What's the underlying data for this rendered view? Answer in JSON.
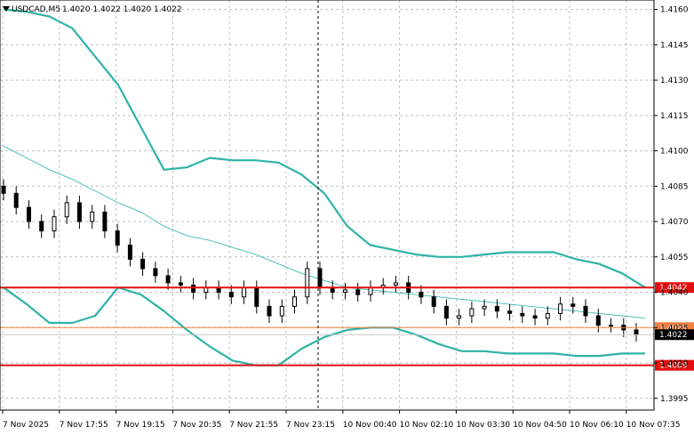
{
  "window": {
    "symbol": "USDCAD,M5",
    "ohlc": "1.4020 1.4022 1.4020 1.4022"
  },
  "chart_data": {
    "type": "candlestick",
    "title": "USDCAD,M5",
    "y_ticks": [
      "1.4160",
      "1.4145",
      "1.4130",
      "1.4115",
      "1.4100",
      "1.4085",
      "1.4070",
      "1.4055",
      "1.4040",
      "1.4025",
      "1.4010",
      "1.3995"
    ],
    "x_ticks": [
      "7 Nov 2025",
      "7 Nov 17:55",
      "7 Nov 19:15",
      "7 Nov 20:35",
      "7 Nov 21:55",
      "7 Nov 23:15",
      "10 Nov 00:40",
      "10 Nov 02:10",
      "10 Nov 03:30",
      "10 Nov 04:50",
      "10 Nov 06:10",
      "10 Nov 07:35"
    ],
    "ylim": [
      1.399,
      1.4164
    ],
    "grid": true,
    "crosshair_x_label": "7 Nov 23:15",
    "levels": [
      {
        "label": "1.4042",
        "value": 1.4042,
        "color": "#e01010",
        "style": "resistance"
      },
      {
        "label": "1.4025",
        "value": 1.4025,
        "color": "#f08040",
        "style": "target"
      },
      {
        "label": "1.4009",
        "value": 1.4009,
        "color": "#e01010",
        "style": "support"
      }
    ],
    "current_price": {
      "label": "1.4022",
      "value": 1.4022
    },
    "bollinger": {
      "upper": [
        1.416,
        1.4159,
        1.4157,
        1.4152,
        1.414,
        1.4128,
        1.411,
        1.4092,
        1.4093,
        1.4097,
        1.4096,
        1.4096,
        1.4095,
        1.409,
        1.4082,
        1.4068,
        1.406,
        1.4058,
        1.4056,
        1.4055,
        1.4055,
        1.4056,
        1.4057,
        1.4057,
        1.4057,
        1.4054,
        1.4052,
        1.4048,
        1.4042
      ],
      "middle": [
        1.4102,
        1.4097,
        1.4092,
        1.4088,
        1.4083,
        1.4078,
        1.4074,
        1.4068,
        1.4064,
        1.4062,
        1.4059,
        1.4056,
        1.4052,
        1.4048,
        1.4045,
        1.4042,
        1.4041,
        1.404,
        1.4039,
        1.4038,
        1.4037,
        1.4036,
        1.4035,
        1.4034,
        1.4033,
        1.4032,
        1.4031,
        1.403,
        1.4029
      ],
      "lower": [
        1.4042,
        1.4035,
        1.4027,
        1.4027,
        1.403,
        1.4042,
        1.4039,
        1.4032,
        1.4024,
        1.4017,
        1.4011,
        1.4009,
        1.4009,
        1.4016,
        1.4021,
        1.4024,
        1.4025,
        1.4025,
        1.4022,
        1.4018,
        1.4015,
        1.4015,
        1.4014,
        1.4014,
        1.4014,
        1.4013,
        1.4013,
        1.4014,
        1.4014
      ]
    },
    "candles_close": [
      1.4082,
      1.4076,
      1.407,
      1.4066,
      1.4072,
      1.4078,
      1.407,
      1.4074,
      1.4066,
      1.406,
      1.4054,
      1.405,
      1.4047,
      1.4044,
      1.4043,
      1.404,
      1.4042,
      1.404,
      1.4038,
      1.4042,
      1.4034,
      1.403,
      1.4034,
      1.4038,
      1.405,
      1.4042,
      1.404,
      1.4041,
      1.4039,
      1.4042,
      1.4043,
      1.4044,
      1.404,
      1.4038,
      1.4034,
      1.4029,
      1.403,
      1.4033,
      1.4034,
      1.4032,
      1.4031,
      1.403,
      1.4029,
      1.4031,
      1.4035,
      1.4034,
      1.403,
      1.4026,
      1.4026,
      1.4024,
      1.4022
    ]
  }
}
